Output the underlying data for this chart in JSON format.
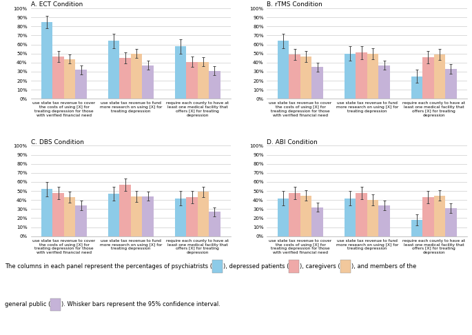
{
  "panels": [
    {
      "title": "A. ECT Condition",
      "groups": [
        {
          "label": "use state tax revenue to cover\nthe costs of using [X] for\ntreating depression for those\nwith verified financial need",
          "values": [
            85,
            47,
            44,
            32
          ],
          "errors": [
            7,
            6,
            5,
            5
          ]
        },
        {
          "label": "use state tax revenue to fund\nmore research on using [X] for\ntreating depression",
          "values": [
            64,
            45,
            50,
            37
          ],
          "errors": [
            8,
            6,
            5,
            5
          ]
        },
        {
          "label": "require each county to have at\nleast one medical facility that\noffers [X] for treating\ndepression",
          "values": [
            58,
            41,
            41,
            31
          ],
          "errors": [
            8,
            6,
            5,
            5
          ]
        }
      ]
    },
    {
      "title": "B. rTMS Condition",
      "groups": [
        {
          "label": "use state tax revenue to cover\nthe costs of using [X] for\ntreating depression for those\nwith verified financial need",
          "values": [
            64,
            49,
            47,
            35
          ],
          "errors": [
            8,
            6,
            6,
            5
          ]
        },
        {
          "label": "use state tax revenue to fund\nmore research on using [X] for\ntreating depression",
          "values": [
            50,
            51,
            50,
            37
          ],
          "errors": [
            8,
            7,
            6,
            5
          ]
        },
        {
          "label": "require each county to have at\nleast one medical facility that\noffers [X] for treating\ndepression",
          "values": [
            25,
            46,
            49,
            33
          ],
          "errors": [
            7,
            7,
            6,
            5
          ]
        }
      ]
    },
    {
      "title": "C. DBS Condition",
      "groups": [
        {
          "label": "use state tax revenue to cover\nthe costs of using [X] for\ntreating depression for those\nwith verified financial need",
          "values": [
            52,
            48,
            43,
            34
          ],
          "errors": [
            8,
            7,
            6,
            5
          ]
        },
        {
          "label": "use state tax revenue to fund\nmore research on using [X] for\ntreating depression",
          "values": [
            47,
            57,
            44,
            44
          ],
          "errors": [
            8,
            7,
            6,
            5
          ]
        },
        {
          "label": "require each county to have at\nleast one medical facility that\noffers [X] for treating\ndepression",
          "values": [
            42,
            43,
            49,
            27
          ],
          "errors": [
            8,
            7,
            6,
            5
          ]
        }
      ]
    },
    {
      "title": "D. ABI Condition",
      "groups": [
        {
          "label": "use state tax revenue to cover\nthe costs of using [X] for\ntreating depression for those\nwith verified financial need",
          "values": [
            42,
            48,
            45,
            32
          ],
          "errors": [
            8,
            7,
            6,
            5
          ]
        },
        {
          "label": "use state tax revenue to fund\nmore research on using [X] for\ntreating depression",
          "values": [
            42,
            48,
            40,
            34
          ],
          "errors": [
            8,
            7,
            6,
            5
          ]
        },
        {
          "label": "require each county to have at\nleast one medical facility that\noffers [X] for treating\ndepression",
          "values": [
            18,
            43,
            45,
            31
          ],
          "errors": [
            6,
            7,
            6,
            5
          ]
        }
      ]
    }
  ],
  "bar_colors": [
    "#8DCBE8",
    "#EFA9A8",
    "#F2C89C",
    "#C5B3D8"
  ],
  "yticks": [
    0,
    10,
    20,
    30,
    40,
    50,
    60,
    70,
    80,
    90,
    100
  ],
  "yticklabels": [
    "0%",
    "10%",
    "20%",
    "30%",
    "40%",
    "50%",
    "60%",
    "70%",
    "80%",
    "90%",
    "100%"
  ],
  "background_color": "#ffffff",
  "grid_color": "#cccccc"
}
